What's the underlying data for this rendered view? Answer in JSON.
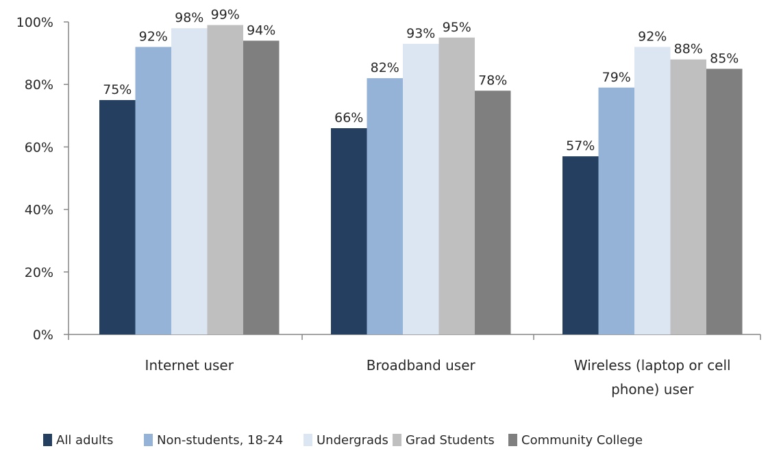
{
  "chart_data": {
    "type": "bar",
    "categories": [
      [
        "Internet user"
      ],
      [
        "Broadband user"
      ],
      [
        "Wireless (laptop or cell",
        "phone) user"
      ]
    ],
    "series": [
      {
        "name": "All adults",
        "color": "#243f60",
        "values": [
          75,
          66,
          57
        ]
      },
      {
        "name": "Non-students, 18-24",
        "color": "#95b3d7",
        "values": [
          92,
          82,
          79
        ]
      },
      {
        "name": "Undergrads",
        "color": "#dce6f2",
        "values": [
          98,
          93,
          92
        ]
      },
      {
        "name": "Grad Students",
        "color": "#bfbfbf",
        "values": [
          99,
          95,
          88
        ]
      },
      {
        "name": "Community College",
        "color": "#7f7f7f",
        "values": [
          94,
          78,
          85
        ]
      }
    ],
    "ylim": [
      0,
      100
    ],
    "yticks": [
      "0%",
      "20%",
      "40%",
      "60%",
      "80%",
      "100%"
    ],
    "value_suffix": "%",
    "grid": false,
    "legend": "bottom"
  }
}
